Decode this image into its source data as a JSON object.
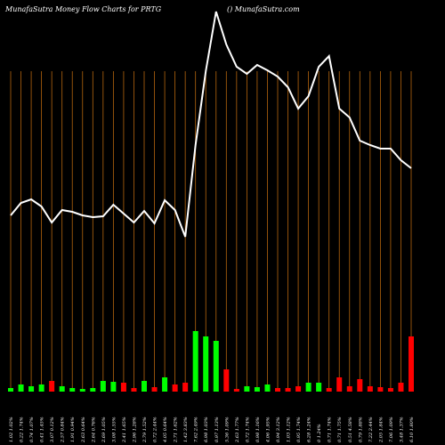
{
  "chart_data": {
    "type": "line",
    "title": "MunafaSutra  Money Flow  Charts for PRTG",
    "subtitle": "() MunafaSutra.com",
    "categories": [
      "1.02 1.02%",
      "0.22 1.74%",
      "0.74 1.07%",
      "0.41 1.45%",
      "3.07 0.12%",
      "2.57 0.84%",
      "1.91 0.94%",
      "2.63 0.64%",
      "2.64 0.76%",
      "2.69 1.05%",
      "3.08 1.55%",
      "2.41 1.65%",
      "2.96 1.28%",
      "2.79 1.52%",
      "0.72 2.44%",
      "4.05 0.64%",
      "2.71 1.62%",
      "1.42 3.83%",
      "7.62 2.49%",
      "6.98 1.03%",
      "0.97 1.13%",
      "5.36 1.09%",
      "2.63 1.77%",
      "0.72 1.74%",
      "0.98 1.16%",
      "4.06 1.95%",
      "0.94 3.12%",
      "1.03 1.12%",
      "0.95 1.74%",
      "6.28 1.24%",
      "0 1.24%",
      "0.71 1.74%",
      "0.71 1.75%",
      "0.51 4.58%",
      "0.79 1.88%",
      "7.22 2.44%",
      "2.05 1.84%",
      "7.06 1.09%",
      "3.48 1.37%",
      "6.10 1.80%"
    ],
    "line_values": [
      258,
      272,
      276,
      268,
      250,
      264,
      262,
      258,
      256,
      257,
      270,
      260,
      250,
      263,
      249,
      275,
      264,
      234,
      337,
      420,
      487,
      450,
      425,
      417,
      427,
      421,
      414,
      402,
      378,
      392,
      425,
      437,
      378,
      368,
      342,
      337,
      333,
      333,
      320,
      311
    ],
    "line_color": "#ffffff",
    "ylim": [
      0,
      500
    ],
    "bar_values": [
      4,
      8,
      6,
      8,
      12,
      6,
      4,
      3,
      4,
      12,
      11,
      10,
      4,
      12,
      5,
      16,
      8,
      10,
      68,
      62,
      57,
      25,
      3,
      6,
      5,
      8,
      4,
      4,
      6,
      10,
      10,
      4,
      16,
      6,
      14,
      6,
      5,
      4,
      10,
      62
    ],
    "bar_colors": [
      "#00ff00",
      "#00ff00",
      "#00ff00",
      "#00ff00",
      "#ff0000",
      "#00ff00",
      "#00ff00",
      "#00ff00",
      "#00ff00",
      "#00ff00",
      "#00ff00",
      "#ff0000",
      "#ff0000",
      "#00ff00",
      "#ff0000",
      "#00ff00",
      "#ff0000",
      "#ff0000",
      "#00ff00",
      "#00ff00",
      "#00ff00",
      "#ff0000",
      "#ff0000",
      "#00ff00",
      "#00ff00",
      "#00ff00",
      "#ff0000",
      "#ff0000",
      "#ff0000",
      "#00ff00",
      "#00ff00",
      "#ff0000",
      "#ff0000",
      "#ff0000",
      "#ff0000",
      "#ff0000",
      "#ff0000",
      "#ff0000",
      "#ff0000",
      "#ff0000"
    ],
    "y2lim": [
      0,
      440
    ],
    "grid_color": "#b5650e",
    "grid": true
  }
}
